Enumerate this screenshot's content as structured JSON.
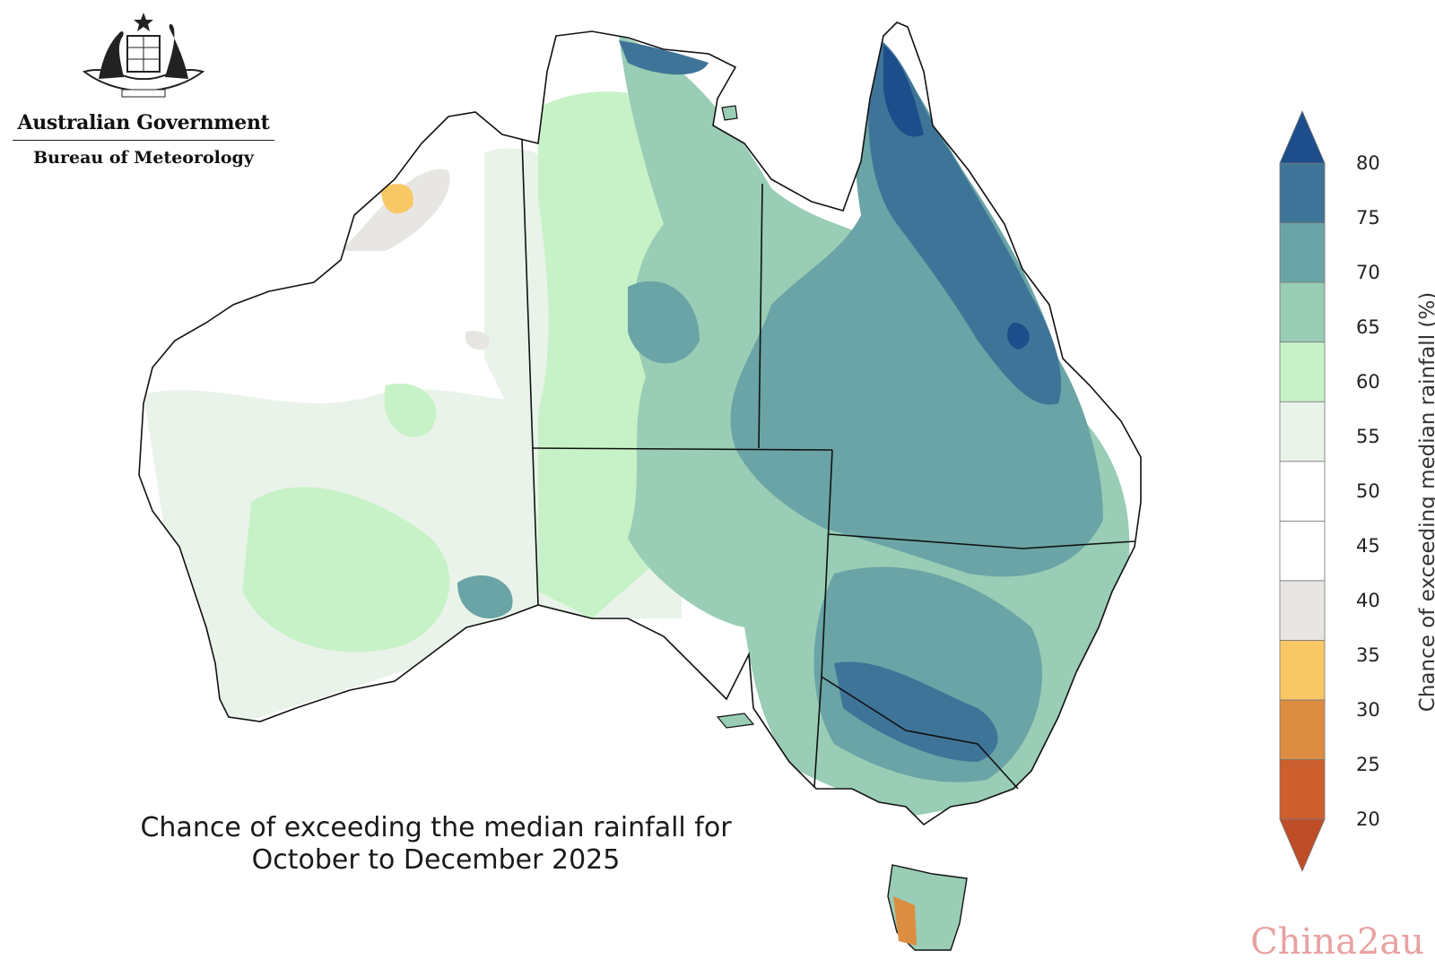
{
  "branding": {
    "government": "Australian Government",
    "bureau": "Bureau of Meteorology"
  },
  "map": {
    "caption_line1": "Chance of exceeding the median rainfall for",
    "caption_line2": "October to December 2025"
  },
  "legend": {
    "title": "Chance of exceeding median rainfall (%)",
    "ticks": [
      "80",
      "75",
      "70",
      "65",
      "60",
      "55",
      "50",
      "45",
      "40",
      "35",
      "30",
      "25",
      "20"
    ],
    "bands": [
      {
        "range": "20-25",
        "color": "#bf4d27"
      },
      {
        "range": "25-30",
        "color": "#cc5f2d"
      },
      {
        "range": "30-35",
        "color": "#dd8d41"
      },
      {
        "range": "35-40",
        "color": "#f8c865"
      },
      {
        "range": "40-45",
        "color": "#e8e6e3"
      },
      {
        "range": "45-50",
        "color": "#ffffff"
      },
      {
        "range": "50-55",
        "color": "#ffffff"
      },
      {
        "range": "55-60",
        "color": "#eaf3ea"
      },
      {
        "range": "60-65",
        "color": "#c7f2c7"
      },
      {
        "range": "65-70",
        "color": "#99cdb5"
      },
      {
        "range": "70-75",
        "color": "#6aa4a6"
      },
      {
        "range": "75-80",
        "color": "#3f7499"
      },
      {
        "range": ">80",
        "color": "#1d4e8b"
      }
    ]
  },
  "watermark": "China2au"
}
